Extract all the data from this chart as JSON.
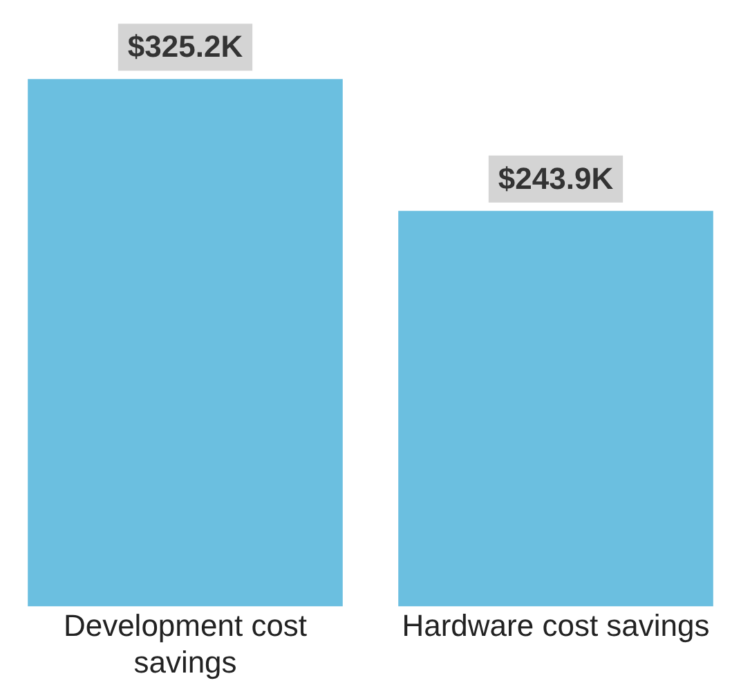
{
  "chart_data": {
    "type": "bar",
    "categories": [
      "Development cost savings",
      "Hardware cost savings"
    ],
    "values": [
      325.2,
      243.9
    ],
    "value_labels": [
      "$325.2K",
      "$243.9K"
    ],
    "color": "#6bbfe0",
    "grid": false,
    "legend": false
  }
}
